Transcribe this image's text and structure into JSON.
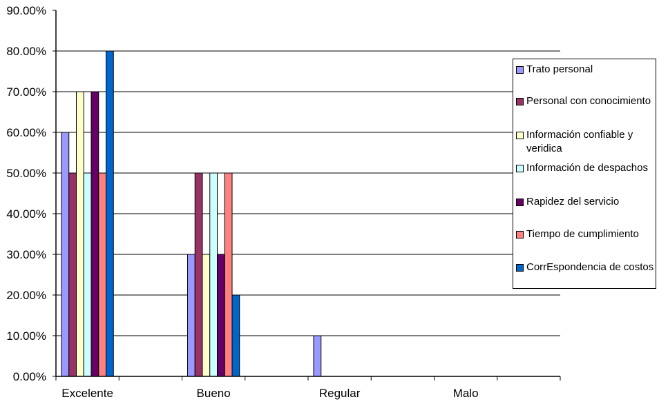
{
  "chart_data": {
    "type": "bar",
    "title": "",
    "xlabel": "",
    "ylabel": "",
    "ylim": [
      0,
      90
    ],
    "y_tick_labels": [
      "0.00%",
      "10.00%",
      "20.00%",
      "30.00%",
      "40.00%",
      "50.00%",
      "60.00%",
      "70.00%",
      "80.00%",
      "90.00%"
    ],
    "grid": true,
    "legend_position": "right",
    "categories": [
      "Excelente",
      "Bueno",
      "Regular",
      "Malo"
    ],
    "series": [
      {
        "name": "Trato personal",
        "color": "#9999FF",
        "values": [
          60,
          30,
          10,
          0
        ]
      },
      {
        "name": "Personal con conocimiento",
        "color": "#993366",
        "values": [
          50,
          50,
          0,
          0
        ]
      },
      {
        "name": "Información confiable y veridica",
        "color": "#FFFFCC",
        "values": [
          70,
          30,
          0,
          0
        ]
      },
      {
        "name": "Información de despachos",
        "color": "#CCFFFF",
        "values": [
          50,
          50,
          0,
          0
        ]
      },
      {
        "name": "Rapidez del servicio",
        "color": "#660066",
        "values": [
          70,
          30,
          0,
          0
        ]
      },
      {
        "name": "Tiempo de cumplimiento",
        "color": "#FF8080",
        "values": [
          50,
          50,
          0,
          0
        ]
      },
      {
        "name": "CorrEspondencia de costos",
        "color": "#0066CC",
        "values": [
          80,
          20,
          0,
          0
        ]
      }
    ]
  }
}
